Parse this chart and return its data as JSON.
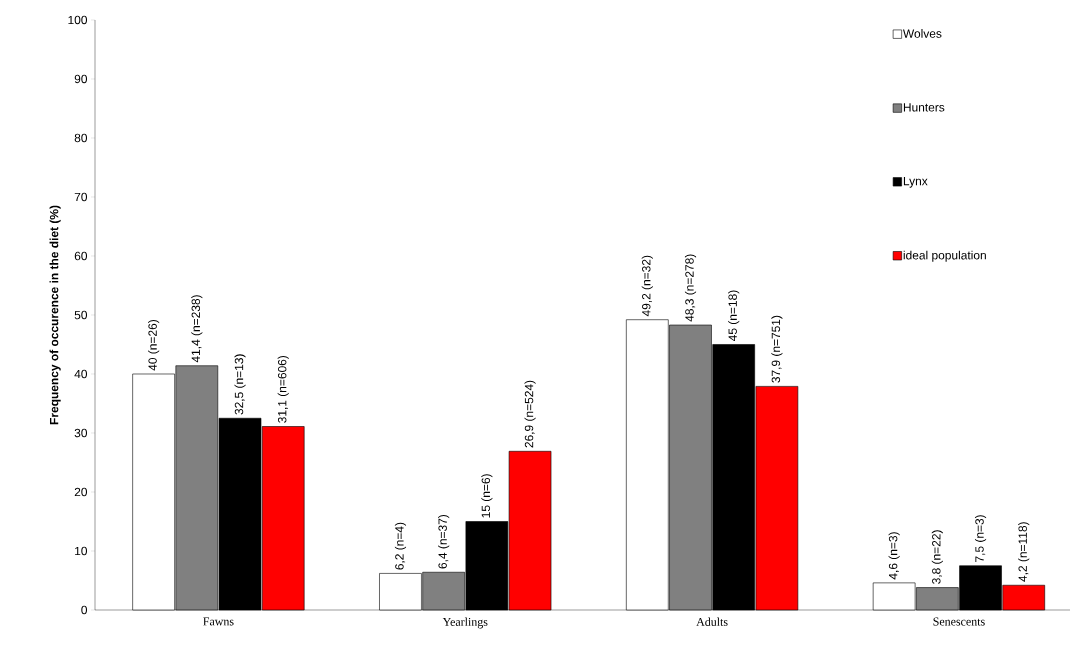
{
  "chart_data": {
    "type": "bar",
    "ylabel": "Frequency of occurence in the diet  (%)",
    "categories": [
      "Fawns",
      "Yearlings",
      "Adults",
      "Senescents"
    ],
    "ylim": [
      0,
      100
    ],
    "yticks": [
      0,
      10,
      20,
      30,
      40,
      50,
      60,
      70,
      80,
      90,
      100
    ],
    "legend": "top right",
    "grid": false,
    "series": [
      {
        "name": "Wolves",
        "color": "#ffffff",
        "values": [
          40,
          6.2,
          49.2,
          4.6
        ],
        "value_labels": [
          "40 (n=26)",
          "6,2 (n=4)",
          "49,2 (n=32)",
          "4,6 (n=3)"
        ]
      },
      {
        "name": "Hunters",
        "color": "#808080",
        "values": [
          41.4,
          6.4,
          48.3,
          3.8
        ],
        "value_labels": [
          "41,4 (n=238)",
          "6,4 (n=37)",
          "48,3 (n=278)",
          "3,8 (n=22)"
        ]
      },
      {
        "name": "Lynx",
        "color": "#000000",
        "values": [
          32.5,
          15,
          45,
          7.5
        ],
        "value_labels": [
          "32,5 (n=13)",
          "15 (n=6)",
          "45 (n=18)",
          "7,5 (n=3)"
        ]
      },
      {
        "name": "ideal population",
        "color": "#ff0000",
        "values": [
          31.1,
          26.9,
          37.9,
          4.2
        ],
        "value_labels": [
          "31,1 (n=606)",
          "26,9 (n=524)",
          "37,9 (n=751)",
          "4,2 (n=118)"
        ]
      }
    ]
  }
}
